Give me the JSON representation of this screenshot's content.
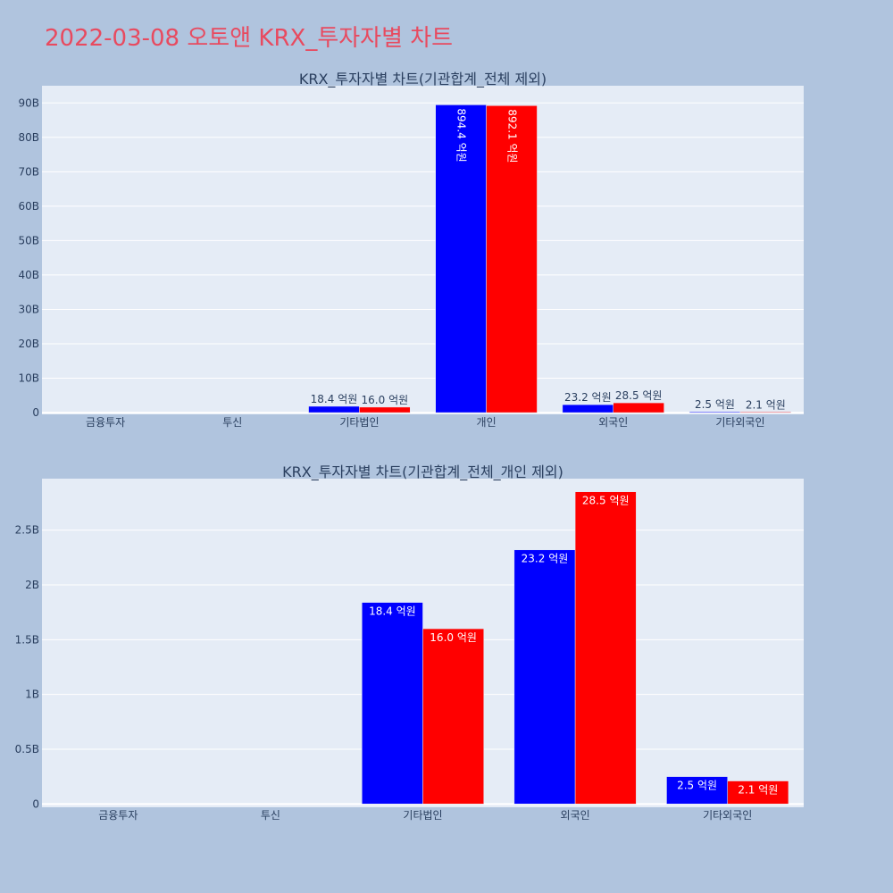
{
  "page": {
    "title": "2022-03-08 오토앤 KRX_투자자별 차트"
  },
  "chart_data": [
    {
      "type": "bar",
      "title": "KRX_투자자별 차트(기관합계_전체 제외)",
      "categories": [
        "금융투자",
        "투신",
        "기타법인",
        "개인",
        "외국인",
        "기타외국인"
      ],
      "ylim": [
        -0.5,
        95
      ],
      "yticks": [
        0,
        10,
        20,
        30,
        40,
        50,
        60,
        70,
        80,
        90
      ],
      "ytick_labels": [
        "0",
        "10B",
        "20B",
        "30B",
        "40B",
        "50B",
        "60B",
        "70B",
        "80B",
        "90B"
      ],
      "label_mode": "auto",
      "series": [
        {
          "color": "#0000ff",
          "values": [
            0,
            0,
            1.84,
            89.44,
            2.32,
            0.25
          ],
          "labels": [
            "",
            "",
            "18.4 억원",
            "894.4 억원",
            "23.2 억원",
            "2.5 억원"
          ]
        },
        {
          "color": "#ff0000",
          "values": [
            0,
            0,
            1.6,
            89.21,
            2.85,
            0.21
          ],
          "labels": [
            "",
            "",
            "16.0 억원",
            "892.1 억원",
            "28.5 억원",
            "2.1 억원"
          ]
        }
      ]
    },
    {
      "type": "bar",
      "title": "KRX_투자자별 차트(기관합계_전체_개인 제외)",
      "categories": [
        "금융투자",
        "투신",
        "기타법인",
        "외국인",
        "기타외국인"
      ],
      "ylim": [
        -0.03,
        2.97
      ],
      "yticks": [
        0,
        0.5,
        1,
        1.5,
        2,
        2.5
      ],
      "ytick_labels": [
        "0",
        "0.5B",
        "1B",
        "1.5B",
        "2B",
        "2.5B"
      ],
      "label_mode": "inside",
      "series": [
        {
          "color": "#0000ff",
          "values": [
            0,
            0,
            1.84,
            2.32,
            0.25
          ],
          "labels": [
            "",
            "",
            "18.4 억원",
            "23.2 억원",
            "2.5 억원"
          ]
        },
        {
          "color": "#ff0000",
          "values": [
            0,
            0,
            1.6,
            2.85,
            0.21
          ],
          "labels": [
            "",
            "",
            "16.0 억원",
            "28.5 억원",
            "2.1 억원"
          ]
        }
      ]
    }
  ]
}
